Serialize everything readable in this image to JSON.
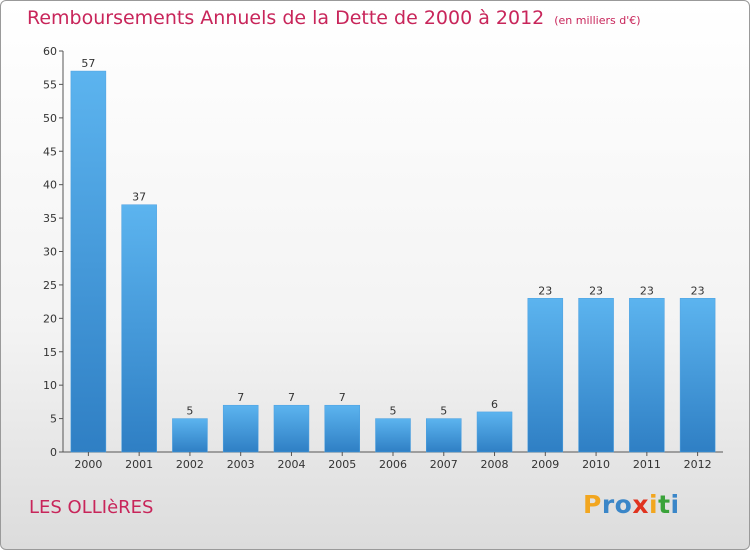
{
  "chart_data": {
    "type": "bar",
    "title": "Remboursements Annuels de la Dette de 2000 à 2012",
    "unit": "(en milliers d'€)",
    "categories": [
      "2000",
      "2001",
      "2002",
      "2003",
      "2004",
      "2005",
      "2006",
      "2007",
      "2008",
      "2009",
      "2010",
      "2011",
      "2012"
    ],
    "values": [
      57,
      37,
      5,
      7,
      7,
      7,
      5,
      5,
      6,
      23,
      23,
      23,
      23
    ],
    "ylim": [
      0,
      60
    ],
    "yticks": [
      0,
      5,
      10,
      15,
      20,
      25,
      30,
      35,
      40,
      45,
      50,
      55,
      60
    ],
    "grid": false,
    "bar_color": "#4a9fe0"
  },
  "commune": "LES OLLIèRES",
  "brand": {
    "letters": [
      "P",
      "r",
      "o",
      "x",
      "i",
      "t",
      "i"
    ],
    "colors": [
      "#f2a61f",
      "#3a86c8",
      "#3a86c8",
      "#e0331f",
      "#f2a61f",
      "#3aa33a",
      "#3a86c8"
    ]
  }
}
